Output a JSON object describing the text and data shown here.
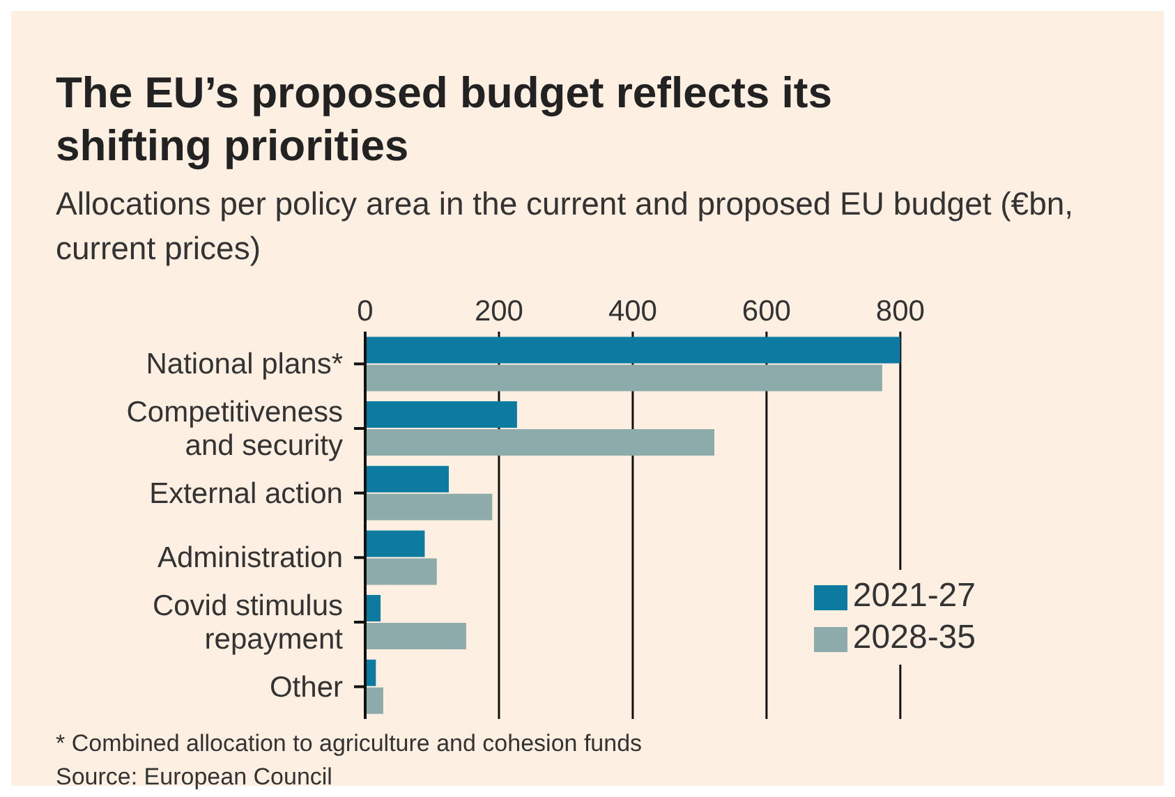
{
  "chart_data": {
    "type": "bar",
    "orientation": "horizontal",
    "title": "The EU’s proposed budget reflects its shifting priorities",
    "subtitle": "Allocations per policy area in the current and proposed EU budget (€bn, current prices)",
    "categories": [
      "National plans*",
      "Competitiveness and security",
      "External action",
      "Administration",
      "Covid stimulus repayment",
      "Other"
    ],
    "series": [
      {
        "name": "2021-27",
        "color": "#0d7a9f",
        "values": [
          800,
          227,
          125,
          89,
          23,
          16
        ]
      },
      {
        "name": "2028-35",
        "color": "#8eabab",
        "values": [
          773,
          522,
          190,
          107,
          151,
          27
        ]
      }
    ],
    "xlim": [
      0,
      800
    ],
    "xticks": [
      0,
      200,
      400,
      600,
      800
    ],
    "grid": "x",
    "legend": "right",
    "annotations": [
      "* Combined allocation to agriculture and cohesion funds",
      "Source: European Council"
    ]
  }
}
